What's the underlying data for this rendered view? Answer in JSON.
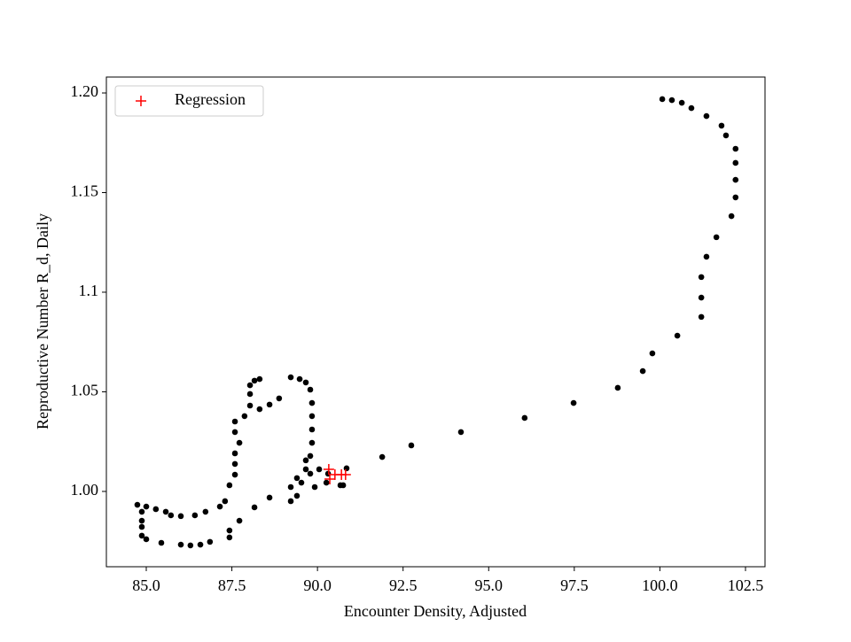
{
  "chart_data": {
    "type": "scatter",
    "xlabel": "Encounter Density, Adjusted",
    "ylabel": "Reproductive Number R_d, Daily",
    "xlim": [
      83.835,
      103.07
    ],
    "ylim": [
      0.9622,
      1.208
    ],
    "xticks": [
      {
        "value": 85,
        "label": "85.0"
      },
      {
        "value": 87.5,
        "label": "87.5"
      },
      {
        "value": 90,
        "label": "90.0"
      },
      {
        "value": 92.5,
        "label": "92.5"
      },
      {
        "value": 95,
        "label": "95.0"
      },
      {
        "value": 97.5,
        "label": "97.5"
      },
      {
        "value": 100,
        "label": "100.0"
      },
      {
        "value": 102.5,
        "label": "102.5"
      }
    ],
    "yticks": [
      {
        "value": 1.0,
        "label": "1.00"
      },
      {
        "value": 1.05,
        "label": "1.05"
      },
      1.1,
      1.15,
      {
        "value": 1.2,
        "label": "1.20"
      }
    ],
    "legend_loc": "upper left",
    "series": [
      {
        "color": "#000000",
        "marker": "o",
        "x": [
          100.07,
          100.35,
          100.64,
          100.92,
          101.36,
          101.8,
          101.93,
          102.21,
          102.21,
          102.21,
          102.21,
          102.09,
          101.65,
          101.36,
          101.21,
          101.21,
          101.21,
          100.51,
          99.78,
          99.5,
          98.77,
          97.48,
          96.05,
          94.19,
          92.74,
          91.89,
          90.85,
          88.6,
          88.16,
          87.72,
          87.43,
          87.43,
          86.86,
          86.58,
          86.29,
          86.01,
          85.44,
          85.0,
          84.87,
          84.87,
          84.87,
          84.87,
          84.74,
          85.0,
          85.28,
          85.57,
          85.72,
          86.01,
          86.42,
          86.73,
          87.15,
          87.3,
          87.43,
          87.59,
          87.59,
          87.59,
          87.72,
          87.59,
          87.59,
          87.87,
          88.03,
          88.03,
          88.03,
          88.16,
          88.31,
          88.31,
          88.6,
          88.88,
          89.22,
          89.48,
          89.66,
          89.79,
          89.84,
          89.84,
          89.84,
          89.84,
          89.79,
          89.66,
          89.53,
          89.4,
          89.22,
          89.22,
          89.4,
          89.79,
          90.05,
          90.31,
          90.26,
          89.92,
          89.66,
          90.67,
          90.75
        ],
        "y": [
          1.1969,
          1.1964,
          1.1951,
          1.1924,
          1.1884,
          1.1836,
          1.1787,
          1.172,
          1.1649,
          1.1564,
          1.1476,
          1.1382,
          1.1276,
          1.1178,
          1.1076,
          1.0973,
          1.0876,
          1.0782,
          1.0693,
          1.0604,
          1.052,
          1.0444,
          1.0369,
          1.0298,
          1.0231,
          1.0173,
          1.0116,
          0.9969,
          0.992,
          0.9853,
          0.9804,
          0.9769,
          0.9747,
          0.9733,
          0.9729,
          0.9733,
          0.9742,
          0.976,
          0.9778,
          0.9822,
          0.9853,
          0.9898,
          0.9933,
          0.9924,
          0.9911,
          0.9898,
          0.988,
          0.9876,
          0.988,
          0.9898,
          0.9924,
          0.9951,
          1.0031,
          1.0084,
          1.0138,
          1.0191,
          1.0244,
          1.0298,
          1.0351,
          1.0378,
          1.0431,
          1.0489,
          1.0533,
          1.0556,
          1.0564,
          1.0413,
          1.0436,
          1.0467,
          1.0573,
          1.0564,
          1.0547,
          1.0511,
          1.0444,
          1.0378,
          1.0311,
          1.0244,
          1.0178,
          1.0111,
          1.0044,
          0.9978,
          0.9951,
          1.0022,
          1.0067,
          1.0089,
          1.0111,
          1.0089,
          1.0044,
          1.0022,
          1.0156,
          1.0031,
          1.0031
        ]
      },
      {
        "name": "Regression",
        "color": "#ff0000",
        "marker": "+",
        "x": [
          90.33,
          90.51,
          90.7,
          90.82,
          90.36
        ],
        "y": [
          1.0111,
          1.0084,
          1.0084,
          1.0084,
          1.0062
        ]
      }
    ]
  }
}
